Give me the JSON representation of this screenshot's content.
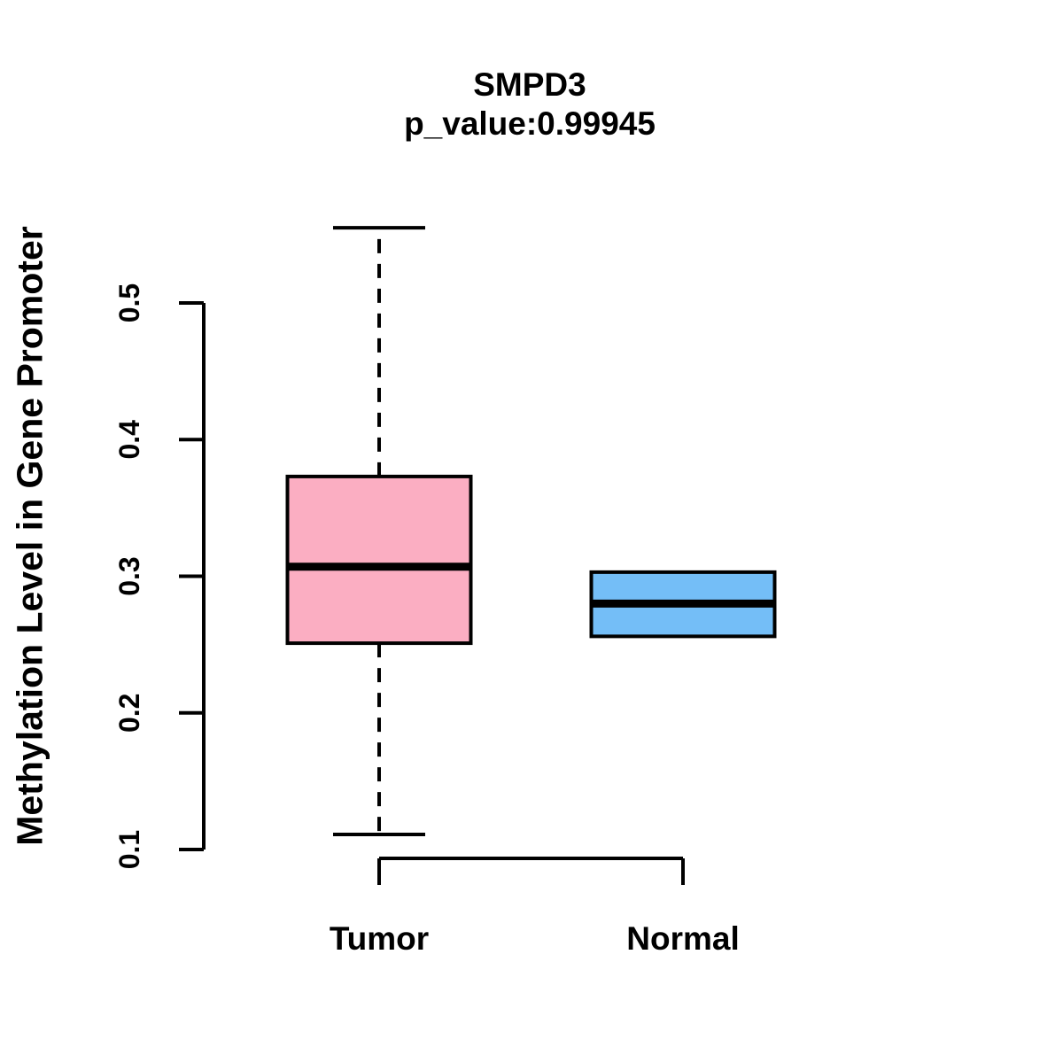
{
  "figure": {
    "background": "#FFFFFF",
    "stroke_color": "#000000"
  },
  "chart_data": {
    "type": "boxplot",
    "title": "SMPD3",
    "subtitle": "p_value:0.99945",
    "ylabel": "Methylation Level in Gene Promoter",
    "xlabel": "",
    "categories": [
      "Tumor",
      "Normal"
    ],
    "yticks": [
      0.1,
      0.2,
      0.3,
      0.4,
      0.5
    ],
    "ytick_labels": [
      "0.1",
      "0.2",
      "0.3",
      "0.4",
      "0.5"
    ],
    "ylim": [
      0.1,
      0.5
    ],
    "grid": false,
    "legend_position": "none",
    "series": [
      {
        "name": "Tumor",
        "whisker_low": 0.111,
        "q1": 0.251,
        "median": 0.307,
        "q3": 0.373,
        "whisker_high": 0.555,
        "fill_color": "#FBAEC2"
      },
      {
        "name": "Normal",
        "whisker_low": 0.256,
        "q1": 0.256,
        "median": 0.28,
        "q3": 0.303,
        "whisker_high": 0.303,
        "fill_color": "#74BEF7"
      }
    ]
  }
}
